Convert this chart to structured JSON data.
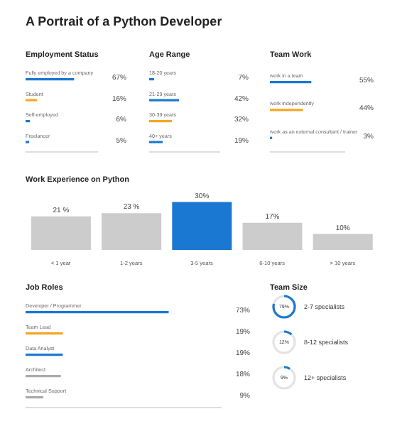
{
  "chart_data": [
    {
      "type": "bar",
      "orientation": "horizontal",
      "title": "A Portrait of a Python Developer",
      "subtitle": "Employment Status",
      "categories": [
        "Fully employed by a company",
        "Student",
        "Self-employed",
        "Freelancer"
      ],
      "values": [
        67,
        16,
        6,
        5
      ],
      "value_labels": [
        "67%",
        "16%",
        "6%",
        "5%"
      ],
      "colors": [
        "#1a78d2",
        "#f5a623",
        "#1a78d2",
        "#1a78d2"
      ],
      "xlim": [
        0,
        100
      ],
      "tick_labels": false
    },
    {
      "type": "bar",
      "orientation": "horizontal",
      "title": "Age Range",
      "categories": [
        "18-20 years",
        "21-29 years",
        "30-39 years",
        "40+ years"
      ],
      "values": [
        7,
        42,
        32,
        19
      ],
      "value_labels": [
        "7%",
        "42%",
        "32%",
        "19%"
      ],
      "colors": [
        "#1a78d2",
        "#1a78d2",
        "#f5a623",
        "#1a78d2"
      ],
      "xlim": [
        0,
        100
      ],
      "tick_labels": false
    },
    {
      "type": "bar",
      "orientation": "horizontal",
      "title": "Team Work",
      "categories": [
        "work in a team",
        "work independently",
        "work as an external consultant / trainer"
      ],
      "values": [
        55,
        44,
        3
      ],
      "value_labels": [
        "55%",
        "44%",
        "3%"
      ],
      "colors": [
        "#1a78d2",
        "#f5a623",
        "#1a78d2"
      ],
      "xlim": [
        0,
        100
      ],
      "tick_labels": false
    },
    {
      "type": "bar",
      "title": "Work Experience on Python",
      "categories": [
        "< 1 year",
        "1-2 years",
        "3-5 years",
        "6-10 years",
        "> 10 years"
      ],
      "values": [
        21,
        23,
        30,
        17,
        10
      ],
      "value_labels": [
        "21 %",
        "23 %",
        "30%",
        "17%",
        "10%"
      ],
      "colors": [
        "#cccccc",
        "#cccccc",
        "#1a78d2",
        "#cccccc",
        "#cccccc"
      ],
      "ylim": [
        0,
        32
      ],
      "tick_labels": "x"
    },
    {
      "type": "bar",
      "orientation": "horizontal",
      "title": "Job Roles",
      "categories": [
        "Developer / Programmer",
        "Team Lead",
        "Data Analyst",
        "Architect",
        "Technical Support"
      ],
      "values": [
        73,
        19,
        19,
        18,
        9
      ],
      "value_labels": [
        "73%",
        "19%",
        "19%",
        "18%",
        "9%"
      ],
      "colors": [
        "#1a78d2",
        "#f5a623",
        "#1a78d2",
        "#aaaaaa",
        "#aaaaaa"
      ],
      "xlim": [
        0,
        100
      ],
      "tick_labels": false
    },
    {
      "type": "other",
      "title": "Team Size",
      "categories": [
        "2-7 specialists",
        "8-12 specialists",
        "12+ specialists"
      ],
      "values": [
        79,
        12,
        9
      ],
      "value_labels": [
        "79%",
        "12%",
        "9%"
      ],
      "colors": [
        "#1a78d2",
        "#1a78d2",
        "#1a78d2"
      ]
    }
  ]
}
